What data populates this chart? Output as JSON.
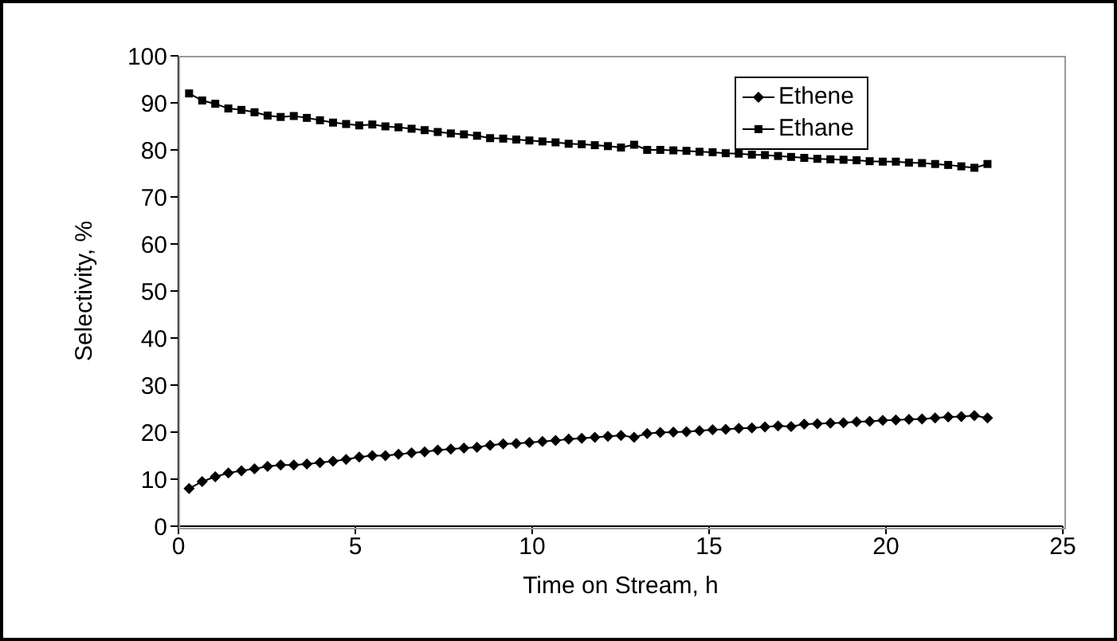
{
  "chart_data": {
    "type": "line",
    "xlabel": "Time on Stream, h",
    "ylabel": "Selectivity, %",
    "x": [
      0.3,
      0.67,
      1.04,
      1.41,
      1.78,
      2.15,
      2.52,
      2.89,
      3.26,
      3.63,
      4.0,
      4.37,
      4.74,
      5.11,
      5.48,
      5.85,
      6.22,
      6.59,
      6.96,
      7.33,
      7.7,
      8.07,
      8.44,
      8.81,
      9.18,
      9.55,
      9.92,
      10.29,
      10.66,
      11.03,
      11.4,
      11.77,
      12.14,
      12.51,
      12.88,
      13.25,
      13.62,
      13.99,
      14.36,
      14.73,
      15.1,
      15.47,
      15.84,
      16.21,
      16.58,
      16.95,
      17.32,
      17.69,
      18.06,
      18.43,
      18.8,
      19.17,
      19.54,
      19.91,
      20.28,
      20.65,
      21.02,
      21.39,
      21.76,
      22.13,
      22.5,
      22.87
    ],
    "series": [
      {
        "name": "Ethene",
        "color": "#000000",
        "marker": "diamond",
        "values": [
          8,
          9.5,
          10.5,
          11.3,
          11.8,
          12.2,
          12.7,
          13,
          13,
          13.2,
          13.5,
          13.8,
          14.2,
          14.7,
          15,
          15,
          15.3,
          15.6,
          15.8,
          16.2,
          16.4,
          16.6,
          16.8,
          17.2,
          17.5,
          17.6,
          17.8,
          18,
          18.2,
          18.5,
          18.7,
          18.9,
          19.1,
          19.3,
          18.9,
          19.7,
          19.9,
          20,
          20.1,
          20.3,
          20.5,
          20.6,
          20.8,
          20.9,
          21.1,
          21.3,
          21.2,
          21.7,
          21.8,
          21.9,
          22,
          22.2,
          22.3,
          22.5,
          22.6,
          22.7,
          22.8,
          23,
          23.2,
          23.3,
          23.5,
          23
        ]
      },
      {
        "name": "Ethane",
        "color": "#000000",
        "marker": "square",
        "values": [
          92,
          90.5,
          89.8,
          88.8,
          88.5,
          88,
          87.3,
          87,
          87.2,
          86.8,
          86.3,
          85.8,
          85.5,
          85.2,
          85.4,
          85,
          84.8,
          84.5,
          84.2,
          83.8,
          83.5,
          83.3,
          83,
          82.5,
          82.4,
          82.2,
          82,
          81.8,
          81.6,
          81.3,
          81.2,
          81,
          80.8,
          80.5,
          81.1,
          80,
          80,
          79.9,
          79.8,
          79.6,
          79.5,
          79.3,
          79.2,
          79,
          78.9,
          78.7,
          78.5,
          78.3,
          78.1,
          78,
          77.9,
          77.8,
          77.6,
          77.5,
          77.5,
          77.3,
          77.2,
          77,
          76.8,
          76.5,
          76.2,
          77
        ]
      }
    ],
    "xlim": [
      0,
      25
    ],
    "xticks": [
      0,
      5,
      10,
      15,
      20,
      25
    ],
    "ylim": [
      0,
      100
    ],
    "yticks": [
      0,
      10,
      20,
      30,
      40,
      50,
      60,
      70,
      80,
      90,
      100
    ],
    "grid": false,
    "legend": "top right",
    "line_style": "solid"
  }
}
